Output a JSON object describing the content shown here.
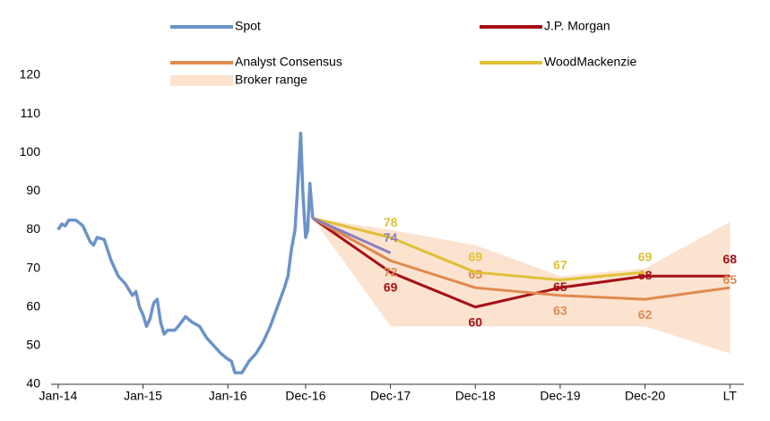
{
  "chart_data": {
    "type": "line",
    "xlim": [
      -1,
      97
    ],
    "xticks": [
      {
        "value": 0,
        "label": "Jan-14"
      },
      {
        "value": 12,
        "label": "Jan-15"
      },
      {
        "value": 24,
        "label": "Jan-16"
      },
      {
        "value": 35,
        "label": "Dec-16"
      },
      {
        "value": 47,
        "label": "Dec-17"
      },
      {
        "value": 59,
        "label": "Dec-18"
      },
      {
        "value": 71,
        "label": "Dec-19"
      },
      {
        "value": 83,
        "label": "Dec-20"
      },
      {
        "value": 95,
        "label": "LT"
      }
    ],
    "ylim": [
      40,
      120
    ],
    "yticks": [
      40,
      50,
      60,
      70,
      80,
      90,
      100,
      110,
      120
    ],
    "range": {
      "name": "Broker range",
      "color": "#fbe3d0",
      "x": [
        36,
        47,
        59,
        71,
        83,
        95
      ],
      "upper": [
        83,
        80,
        76,
        68,
        70,
        82
      ],
      "lower": [
        83,
        55,
        55,
        55,
        55,
        48
      ]
    },
    "series": [
      {
        "name": "Spot",
        "color": "#6b93c9",
        "x": [
          0,
          0.5,
          1,
          1.5,
          2.5,
          3.5,
          4.5,
          5,
          5.5,
          6.5,
          7.5,
          8.5,
          9.5,
          10.5,
          11,
          11.5,
          12,
          12.5,
          13,
          13.5,
          14,
          14.5,
          15,
          15.5,
          16.5,
          17,
          18,
          19,
          20,
          21,
          22,
          23,
          24,
          24.5,
          25,
          26,
          27,
          28,
          29,
          30,
          31,
          32,
          32.5,
          33,
          33.5,
          34,
          34.3,
          34.6,
          35,
          35.3,
          35.6,
          36
        ],
        "values": [
          80,
          81.5,
          81,
          82.5,
          82.5,
          81,
          77,
          76,
          78,
          77.5,
          72,
          68,
          66,
          63,
          64,
          60,
          58,
          55,
          57,
          61,
          62,
          56,
          53,
          54,
          54,
          55,
          57.5,
          56,
          55,
          52,
          50,
          48,
          46.5,
          46,
          43,
          43,
          46,
          48,
          51,
          55,
          60,
          65,
          68,
          75,
          80,
          95,
          105,
          90,
          78,
          80,
          92,
          83
        ]
      },
      {
        "name": "J.P. Morgan",
        "color": "#a50f15",
        "x": [
          36,
          47,
          59,
          71,
          83,
          95
        ],
        "values": [
          83,
          69,
          60,
          65,
          68,
          68
        ],
        "labeled": [
          false,
          true,
          true,
          true,
          true,
          true
        ]
      },
      {
        "name": "Analyst Consensus",
        "color": "#e08a4f",
        "x": [
          36,
          47,
          59,
          71,
          83,
          95
        ],
        "values": [
          83,
          72,
          65,
          63,
          62,
          65
        ],
        "labeled": [
          false,
          true,
          true,
          true,
          true,
          true
        ]
      },
      {
        "name": "WoodMackenzie",
        "color": "#e0c035",
        "x": [
          36,
          47,
          59,
          71,
          83
        ],
        "values": [
          83,
          78,
          69,
          67,
          69
        ],
        "labeled": [
          false,
          true,
          true,
          true,
          true
        ]
      },
      {
        "color": "#8a7fbf",
        "x": [
          36,
          47
        ],
        "values": [
          83,
          74
        ],
        "labeled": [
          false,
          true
        ]
      }
    ]
  }
}
